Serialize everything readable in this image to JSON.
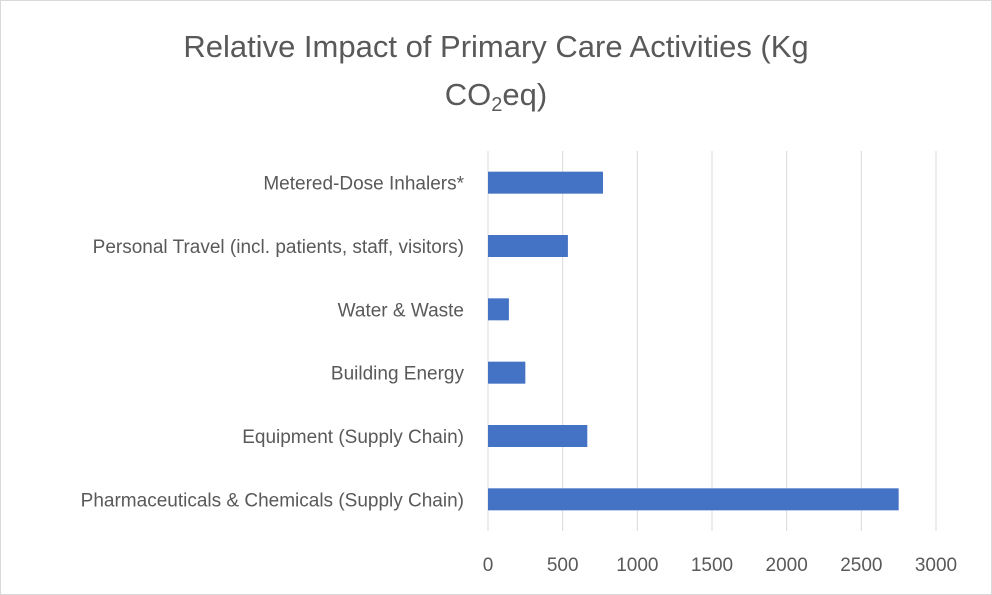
{
  "chart_data": {
    "type": "bar",
    "orientation": "horizontal",
    "title_line1": "Relative Impact of Primary Care Activities (Kg",
    "title_line2_prefix": "CO",
    "title_line2_sub": "2",
    "title_line2_suffix": "eq)",
    "categories": [
      "Metered-Dose Inhalers*",
      "Personal Travel (incl. patients, staff, visitors)",
      "Water & Waste",
      "Building Energy",
      "Equipment (Supply Chain)",
      "Pharmaceuticals & Chemicals (Supply Chain)"
    ],
    "values": [
      770,
      535,
      140,
      250,
      665,
      2750
    ],
    "xlim": [
      0,
      3000
    ],
    "xticks": [
      0,
      500,
      1000,
      1500,
      2000,
      2500,
      3000
    ],
    "grid": true,
    "bar_color": "#4472C4",
    "grid_color": "#d9d9d9"
  }
}
